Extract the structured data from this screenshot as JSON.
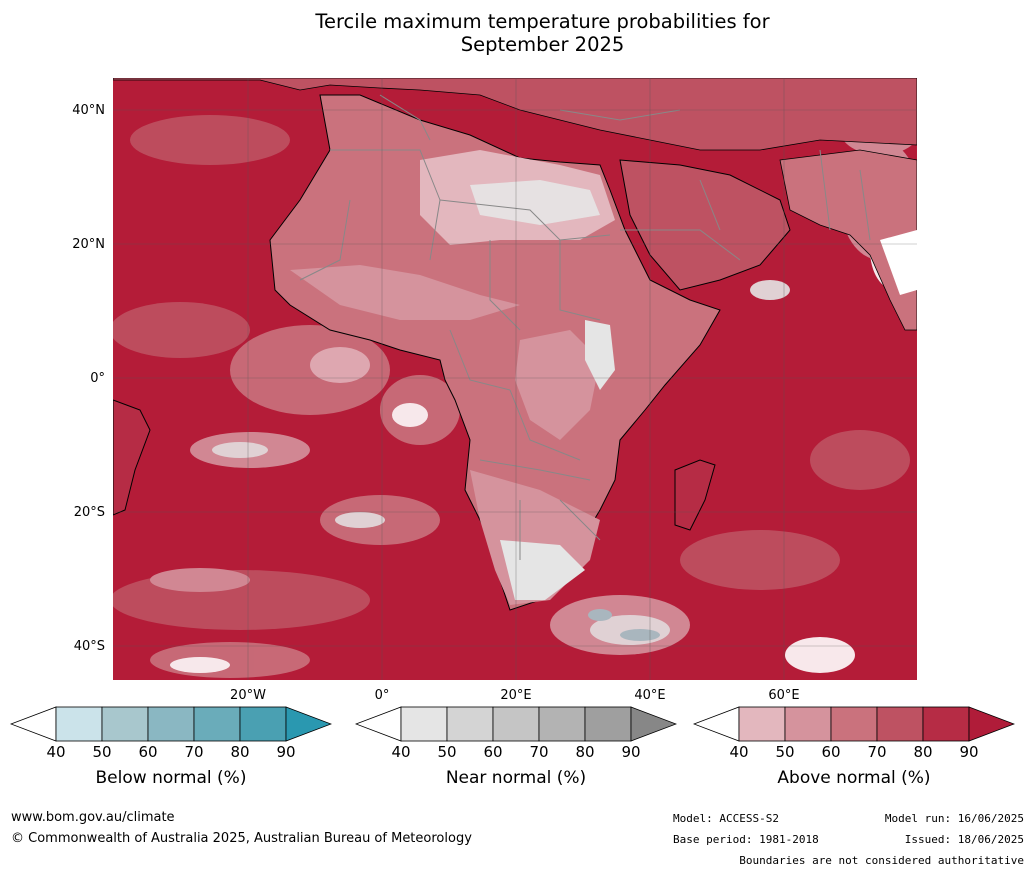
{
  "title": {
    "line1": "Tercile maximum temperature probabilities for",
    "line2": "September 2025"
  },
  "map": {
    "lat_labels": [
      "40°N",
      "20°N",
      "0°",
      "20°S",
      "40°S"
    ],
    "lon_labels": [
      "20°W",
      "0°",
      "20°E",
      "40°E",
      "60°E"
    ],
    "colors": {
      "sea_base": "#b41c38",
      "land_border": "#000000",
      "country_border": "#888888"
    }
  },
  "colorbars": [
    {
      "label": "Below normal (%)",
      "ticks": [
        "40",
        "50",
        "60",
        "70",
        "80",
        "90"
      ],
      "colors": [
        "#ffffff",
        "#cbe3ea",
        "#a8c7cd",
        "#8ab7c2",
        "#6aacba",
        "#4aa0b2",
        "#2a98b0"
      ]
    },
    {
      "label": "Near normal (%)",
      "ticks": [
        "40",
        "50",
        "60",
        "70",
        "80",
        "90"
      ],
      "colors": [
        "#ffffff",
        "#e5e5e5",
        "#d4d4d4",
        "#c5c5c5",
        "#b3b3b3",
        "#9f9f9f",
        "#878787"
      ]
    },
    {
      "label": "Above normal (%)",
      "ticks": [
        "40",
        "50",
        "60",
        "70",
        "80",
        "90"
      ],
      "colors": [
        "#ffffff",
        "#e3b7be",
        "#d5939d",
        "#ca727d",
        "#be5262",
        "#b62c45",
        "#b01c39"
      ]
    }
  ],
  "footer": {
    "url": "www.bom.gov.au/climate",
    "copyright": "© Commonwealth of Australia 2025, Australian Bureau of Meteorology",
    "model": "Model: ACCESS-S2",
    "base_period": "Base period: 1981-2018",
    "model_run": "Model run: 16/06/2025",
    "issued": "Issued: 18/06/2025",
    "disclaimer": "Boundaries are not considered authoritative"
  }
}
